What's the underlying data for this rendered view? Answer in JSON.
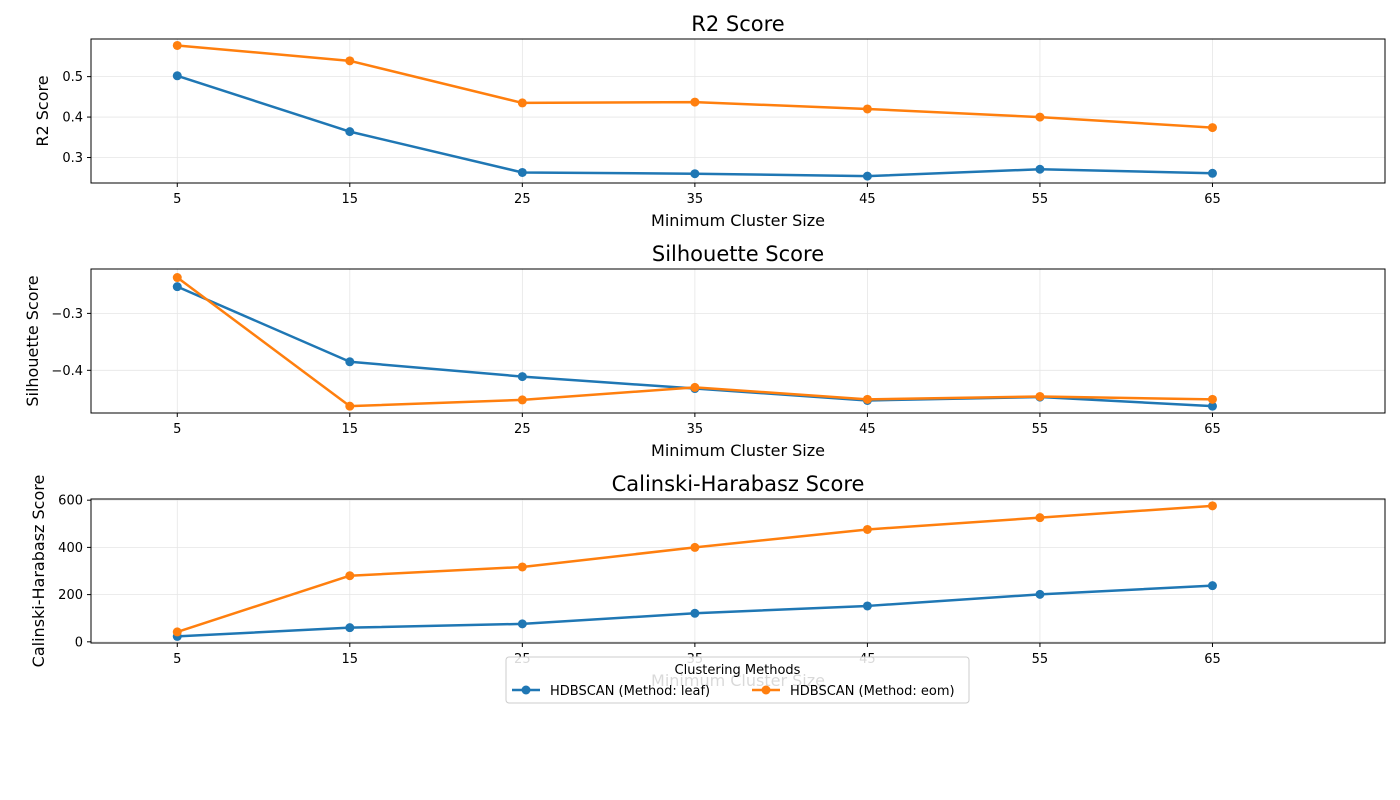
{
  "colors": {
    "leaf": "#1f77b4",
    "eom": "#ff7f0e",
    "grid": "#e6e6e6"
  },
  "legend": {
    "title": "Clustering Methods",
    "placement": "bottom-center",
    "entries": [
      "HDBSCAN (Method: leaf)",
      "HDBSCAN (Method: eom)"
    ]
  },
  "chart_data": [
    {
      "type": "line",
      "title": "R2 Score",
      "xlabel": "Minimum Cluster Size",
      "ylabel": "R2 Score",
      "x": [
        5,
        15,
        25,
        35,
        45,
        55,
        65
      ],
      "xticks": [
        5,
        15,
        25,
        35,
        45,
        55,
        65
      ],
      "yticks": [
        0.3,
        0.4,
        0.5
      ],
      "yticklabels": [
        "0.3",
        "0.4",
        "0.5"
      ],
      "xlim": [
        0,
        75
      ],
      "ylim": [
        0.237,
        0.593
      ],
      "grid": true,
      "series": [
        {
          "name": "HDBSCAN (Method: leaf)",
          "color": "#1f77b4",
          "values": [
            0.502,
            0.364,
            0.263,
            0.26,
            0.254,
            0.271,
            0.261
          ]
        },
        {
          "name": "HDBSCAN (Method: eom)",
          "color": "#ff7f0e",
          "values": [
            0.577,
            0.539,
            0.435,
            0.437,
            0.42,
            0.4,
            0.374
          ]
        }
      ]
    },
    {
      "type": "line",
      "title": "Silhouette Score",
      "xlabel": "Minimum Cluster Size",
      "ylabel": "Silhouette Score",
      "x": [
        5,
        15,
        25,
        35,
        45,
        55,
        65
      ],
      "xticks": [
        5,
        15,
        25,
        35,
        45,
        55,
        65
      ],
      "yticks": [
        -0.4,
        -0.3
      ],
      "yticklabels": [
        "−0.4",
        "−0.3"
      ],
      "xlim": [
        0,
        75
      ],
      "ylim": [
        -0.475,
        -0.222
      ],
      "grid": true,
      "series": [
        {
          "name": "HDBSCAN (Method: leaf)",
          "color": "#1f77b4",
          "values": [
            -0.253,
            -0.385,
            -0.411,
            -0.432,
            -0.453,
            -0.447,
            -0.463
          ]
        },
        {
          "name": "HDBSCAN (Method: eom)",
          "color": "#ff7f0e",
          "values": [
            -0.237,
            -0.463,
            -0.452,
            -0.43,
            -0.451,
            -0.446,
            -0.451
          ]
        }
      ]
    },
    {
      "type": "line",
      "title": "Calinski-Harabasz Score",
      "xlabel": "Minimum Cluster Size",
      "ylabel": "Calinski-Harabasz Score",
      "x": [
        5,
        15,
        25,
        35,
        45,
        55,
        65
      ],
      "xticks": [
        5,
        15,
        25,
        35,
        45,
        55,
        65
      ],
      "yticks": [
        0,
        200,
        400,
        600
      ],
      "yticklabels": [
        "0",
        "200",
        "400",
        "600"
      ],
      "xlim": [
        0,
        75
      ],
      "ylim": [
        -5,
        605
      ],
      "grid": true,
      "series": [
        {
          "name": "HDBSCAN (Method: leaf)",
          "color": "#1f77b4",
          "values": [
            23,
            60,
            76,
            121,
            152,
            201,
            238
          ]
        },
        {
          "name": "HDBSCAN (Method: eom)",
          "color": "#ff7f0e",
          "values": [
            42,
            280,
            317,
            400,
            476,
            526,
            576
          ]
        }
      ]
    }
  ]
}
